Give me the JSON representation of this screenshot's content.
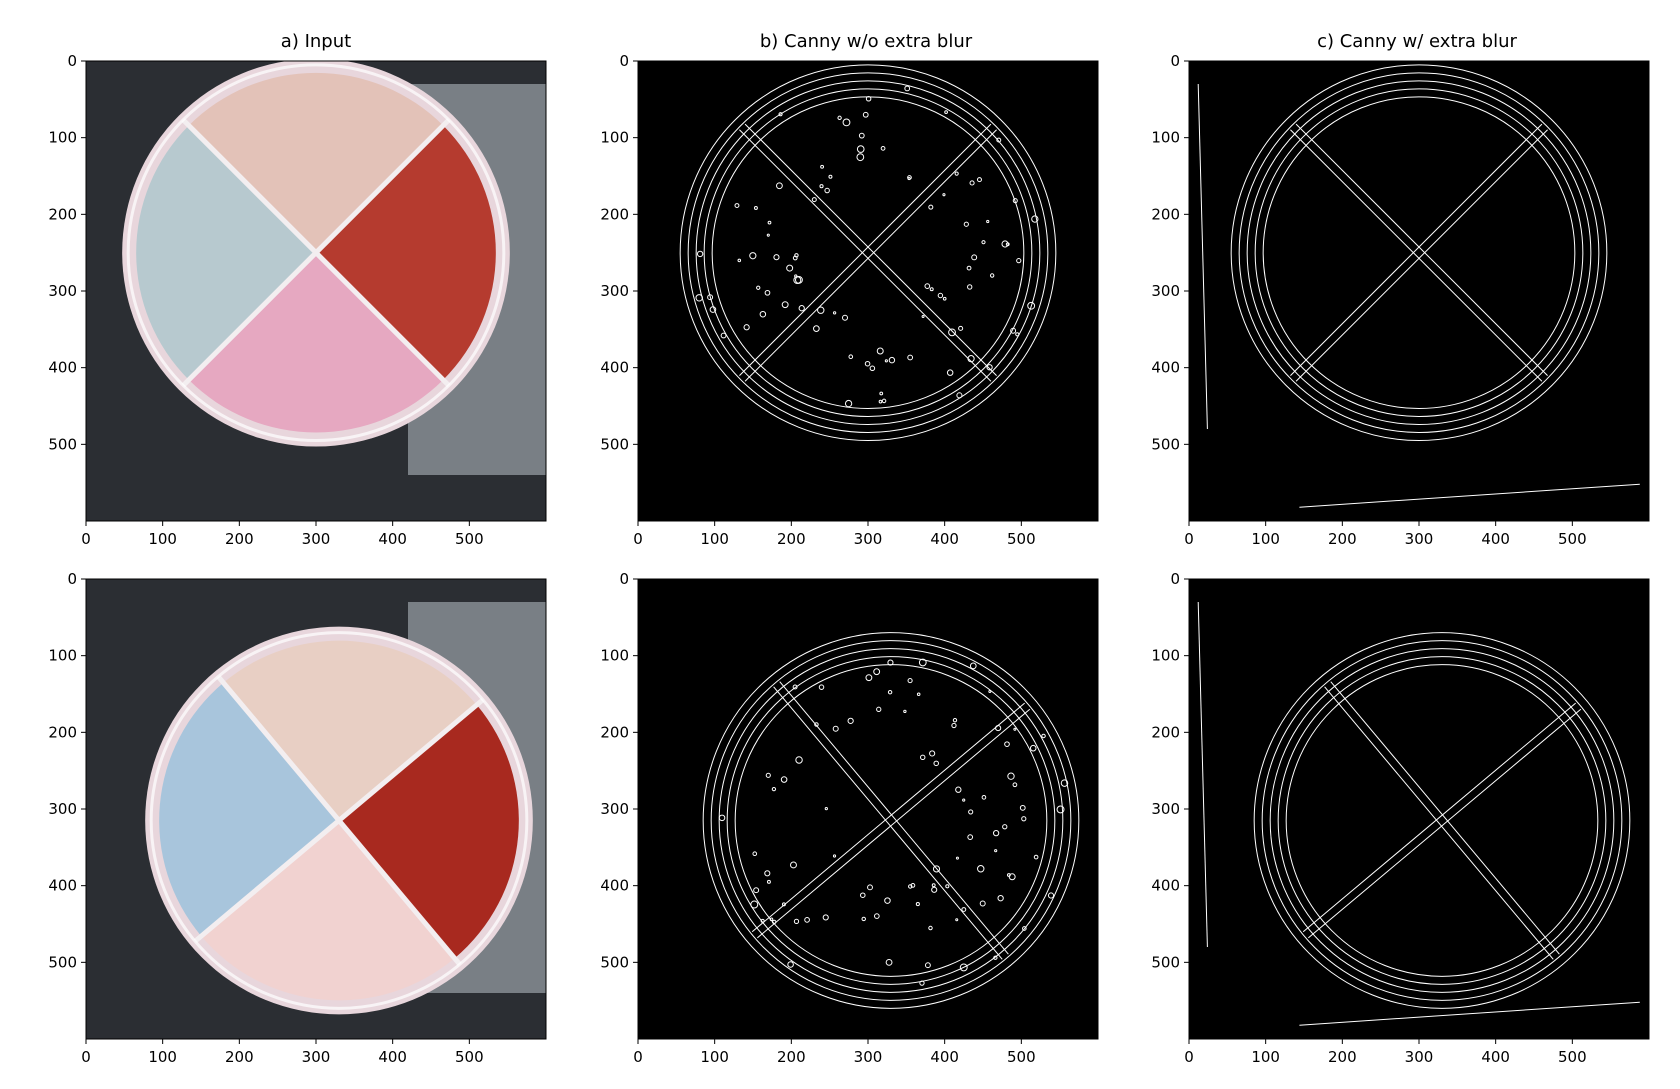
{
  "figure": {
    "columns": [
      {
        "id": "input",
        "title": "a) Input"
      },
      {
        "id": "canny-no-blur",
        "title": "b) Canny w/o extra blur"
      },
      {
        "id": "canny-blur",
        "title": "c) Canny w/ extra blur"
      }
    ],
    "rows": [
      "top",
      "bottom"
    ],
    "x_ticks": [
      "0",
      "100",
      "200",
      "300",
      "400",
      "500"
    ],
    "y_ticks": [
      "0",
      "100",
      "200",
      "300",
      "400",
      "500"
    ],
    "colors": {
      "edge_background": "#000000",
      "edge_line": "#ffffff",
      "input_background": "#2b2e33",
      "plate_rim": "#e8d6dc"
    },
    "plates": {
      "top": {
        "quadrants": [
          "pink-beige",
          "dark-red",
          "pink",
          "light-blue-green"
        ],
        "quadrant_colors": [
          "#e3c2b8",
          "#b53b2f",
          "#e6a8c1",
          "#b7c9cf"
        ]
      },
      "bottom": {
        "quadrants": [
          "cream",
          "dark-red",
          "light-pink",
          "light-blue"
        ],
        "quadrant_colors": [
          "#e8cfc4",
          "#a8291f",
          "#f1d2d0",
          "#a8c5dc"
        ]
      }
    }
  }
}
